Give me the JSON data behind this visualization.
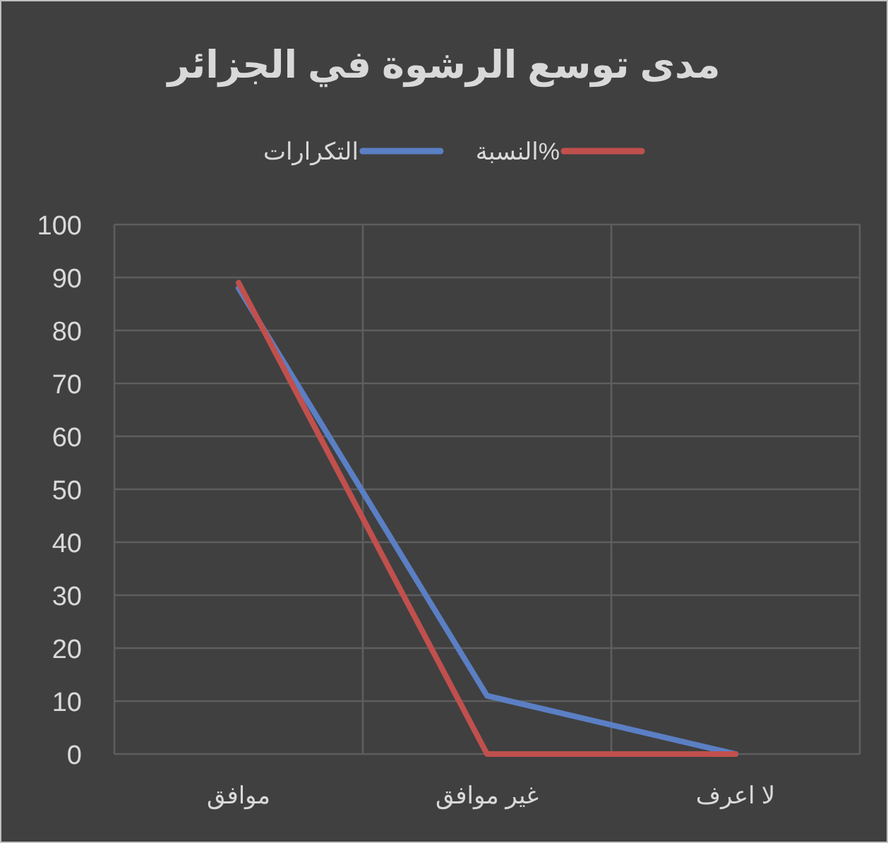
{
  "chart_data": {
    "type": "line",
    "title": "مدى توسع الرشوة في الجزائر",
    "categories": [
      "موافق",
      "غير موافق",
      "لا اعرف"
    ],
    "series": [
      {
        "name": "النسبة%",
        "color": "#c0504d",
        "values": [
          89,
          0,
          0
        ]
      },
      {
        "name": "التكرارات",
        "color": "#5b7fc4",
        "values": [
          88,
          11,
          0
        ]
      }
    ],
    "ylim": [
      0,
      100
    ],
    "yticks": [
      0,
      10,
      20,
      30,
      40,
      50,
      60,
      70,
      80,
      90,
      100
    ],
    "grid": true,
    "legend": "top",
    "marker": "none",
    "line_style": "solid"
  }
}
